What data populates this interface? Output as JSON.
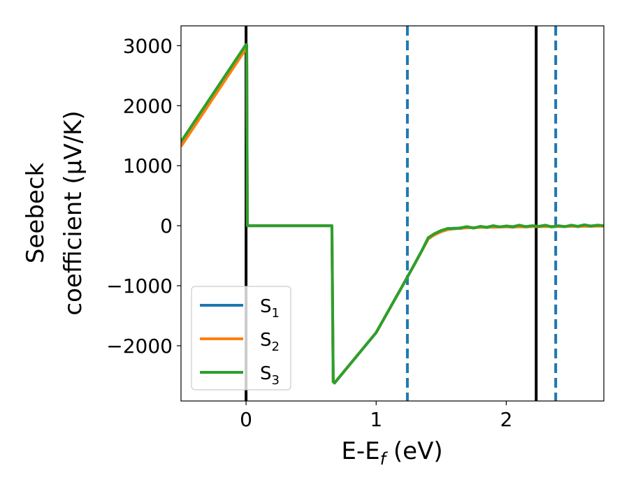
{
  "chart_data": {
    "type": "line",
    "xlabel": "E-E",
    "xlabel_sub": "f",
    "xlabel_unit": " (eV)",
    "ylabel_line1": "Seebeck",
    "ylabel_line2": "coefficient  (μV/K)",
    "xlim": [
      -0.5,
      2.75
    ],
    "ylim": [
      -2920,
      3330
    ],
    "xticks": [
      0,
      1,
      2
    ],
    "xtick_labels": [
      "0",
      "1",
      "2"
    ],
    "yticks": [
      -2000,
      -1000,
      0,
      1000,
      2000,
      3000
    ],
    "ytick_labels": [
      "−2000",
      "−1000",
      "0",
      "1000",
      "2000",
      "3000"
    ],
    "legend_position": "lower-left",
    "series": [
      {
        "name": "S1",
        "color": "#1f77b4",
        "points": [
          [
            -0.5,
            1360
          ],
          [
            0.0,
            2980
          ],
          [
            0.005,
            2980
          ],
          [
            0.01,
            0
          ],
          [
            0.66,
            0
          ],
          [
            0.67,
            -2600
          ],
          [
            0.68,
            -2620
          ],
          [
            1.0,
            -1780
          ],
          [
            1.2,
            -1010
          ],
          [
            1.3,
            -620
          ],
          [
            1.35,
            -420
          ],
          [
            1.4,
            -220
          ],
          [
            1.45,
            -140
          ],
          [
            1.5,
            -90
          ],
          [
            1.55,
            -55
          ],
          [
            1.6,
            -40
          ],
          [
            1.65,
            -45
          ],
          [
            1.7,
            -25
          ],
          [
            1.75,
            -35
          ],
          [
            1.8,
            -20
          ],
          [
            1.85,
            -30
          ],
          [
            1.9,
            -15
          ],
          [
            1.95,
            -20
          ],
          [
            2.0,
            -15
          ],
          [
            2.05,
            -25
          ],
          [
            2.1,
            -10
          ],
          [
            2.15,
            -20
          ],
          [
            2.2,
            -10
          ],
          [
            2.25,
            -15
          ],
          [
            2.3,
            0
          ],
          [
            2.35,
            -20
          ],
          [
            2.4,
            -10
          ],
          [
            2.45,
            -15
          ],
          [
            2.5,
            0
          ],
          [
            2.55,
            -15
          ],
          [
            2.6,
            -5
          ],
          [
            2.65,
            -10
          ],
          [
            2.7,
            0
          ],
          [
            2.75,
            -5
          ]
        ]
      },
      {
        "name": "S2",
        "color": "#ff7f0e",
        "points": [
          [
            -0.5,
            1320
          ],
          [
            0.0,
            2950
          ],
          [
            0.005,
            2950
          ],
          [
            0.01,
            0
          ],
          [
            0.66,
            0
          ],
          [
            0.67,
            -2600
          ],
          [
            0.68,
            -2620
          ],
          [
            1.0,
            -1780
          ],
          [
            1.2,
            -1010
          ],
          [
            1.3,
            -620
          ],
          [
            1.35,
            -420
          ],
          [
            1.4,
            -220
          ],
          [
            1.45,
            -150
          ],
          [
            1.5,
            -100
          ],
          [
            1.55,
            -65
          ],
          [
            1.6,
            -50
          ],
          [
            1.65,
            -40
          ],
          [
            1.7,
            -35
          ],
          [
            1.75,
            -30
          ],
          [
            1.8,
            -28
          ],
          [
            1.85,
            -25
          ],
          [
            1.9,
            -25
          ],
          [
            1.95,
            -22
          ],
          [
            2.0,
            -20
          ],
          [
            2.05,
            -20
          ],
          [
            2.1,
            -18
          ],
          [
            2.15,
            -18
          ],
          [
            2.2,
            -15
          ],
          [
            2.25,
            -15
          ],
          [
            2.3,
            -15
          ],
          [
            2.35,
            -12
          ],
          [
            2.4,
            -12
          ],
          [
            2.45,
            -12
          ],
          [
            2.5,
            -10
          ],
          [
            2.55,
            -10
          ],
          [
            2.6,
            -10
          ],
          [
            2.65,
            -8
          ],
          [
            2.7,
            -8
          ],
          [
            2.75,
            -8
          ]
        ]
      },
      {
        "name": "S3",
        "color": "#2ca02c",
        "points": [
          [
            -0.5,
            1400
          ],
          [
            0.0,
            3020
          ],
          [
            0.005,
            3020
          ],
          [
            0.01,
            0
          ],
          [
            0.66,
            0
          ],
          [
            0.67,
            -2600
          ],
          [
            0.68,
            -2620
          ],
          [
            1.0,
            -1780
          ],
          [
            1.2,
            -1010
          ],
          [
            1.3,
            -620
          ],
          [
            1.35,
            -420
          ],
          [
            1.4,
            -200
          ],
          [
            1.45,
            -130
          ],
          [
            1.5,
            -80
          ],
          [
            1.55,
            -45
          ],
          [
            1.6,
            -50
          ],
          [
            1.65,
            -35
          ],
          [
            1.7,
            -15
          ],
          [
            1.75,
            -40
          ],
          [
            1.8,
            -10
          ],
          [
            1.85,
            -25
          ],
          [
            1.9,
            0
          ],
          [
            1.95,
            -20
          ],
          [
            2.0,
            -5
          ],
          [
            2.05,
            -15
          ],
          [
            2.1,
            10
          ],
          [
            2.15,
            -15
          ],
          [
            2.2,
            0
          ],
          [
            2.25,
            -10
          ],
          [
            2.3,
            10
          ],
          [
            2.35,
            -20
          ],
          [
            2.4,
            0
          ],
          [
            2.45,
            -15
          ],
          [
            2.5,
            10
          ],
          [
            2.55,
            -10
          ],
          [
            2.6,
            15
          ],
          [
            2.65,
            -5
          ],
          [
            2.7,
            10
          ],
          [
            2.75,
            0
          ]
        ]
      }
    ],
    "vlines": [
      {
        "x": 0.0,
        "style": "solid",
        "color": "#000000"
      },
      {
        "x": 2.23,
        "style": "solid",
        "color": "#000000"
      },
      {
        "x": 1.24,
        "style": "dashed",
        "color": "#1f77b4"
      },
      {
        "x": 2.38,
        "style": "dashed",
        "color": "#1f77b4"
      }
    ],
    "legend": [
      {
        "base": "S",
        "sub": "1",
        "color": "#1f77b4"
      },
      {
        "base": "S",
        "sub": "2",
        "color": "#ff7f0e"
      },
      {
        "base": "S",
        "sub": "3",
        "color": "#2ca02c"
      }
    ]
  }
}
